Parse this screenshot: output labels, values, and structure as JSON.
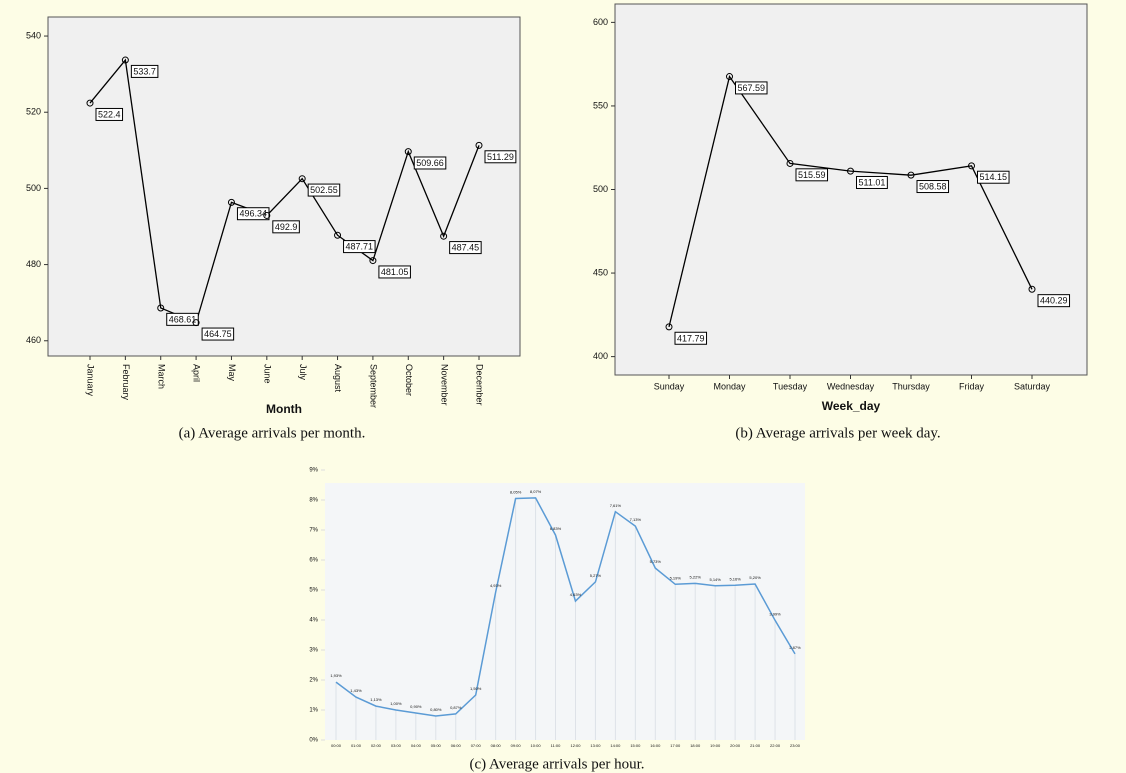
{
  "chart_data": [
    {
      "type": "line",
      "caption": "(a) Average arrivals per month.",
      "xlabel": "Month",
      "categories": [
        "January",
        "February",
        "March",
        "April",
        "May",
        "June",
        "July",
        "August",
        "September",
        "October",
        "November",
        "December"
      ],
      "values": [
        522.4,
        533.7,
        468.61,
        464.75,
        496.34,
        492.9,
        502.55,
        487.71,
        481.05,
        509.66,
        487.45,
        511.29
      ],
      "color": "#000000",
      "ylim": [
        456,
        545
      ],
      "yticks": [
        460,
        480,
        500,
        520,
        540
      ]
    },
    {
      "type": "line",
      "caption": "(b) Average arrivals per week day.",
      "xlabel": "Week_day",
      "categories": [
        "Sunday",
        "Monday",
        "Tuesday",
        "Wednesday",
        "Thursday",
        "Friday",
        "Saturday"
      ],
      "values": [
        417.79,
        567.59,
        515.59,
        511.01,
        508.58,
        514.15,
        440.29
      ],
      "color": "#000000",
      "ylim": [
        389,
        611
      ],
      "yticks": [
        400,
        450,
        500,
        550,
        600
      ]
    },
    {
      "type": "line",
      "caption": "(c) Average arrivals per hour.",
      "categories": [
        "00:00",
        "01:00",
        "02:00",
        "03:00",
        "04:00",
        "05:00",
        "06:00",
        "07:00",
        "08:00",
        "09:00",
        "10:00",
        "11:00",
        "12:00",
        "13:00",
        "14:00",
        "15:00",
        "16:00",
        "17:00",
        "18:00",
        "19:00",
        "20:00",
        "21:00",
        "22:00",
        "23:00"
      ],
      "values": [
        1.93,
        1.43,
        1.13,
        1.0,
        0.9,
        0.8,
        0.87,
        1.5,
        4.93,
        8.05,
        8.07,
        6.83,
        4.63,
        5.27,
        7.61,
        7.13,
        5.73,
        5.19,
        5.22,
        5.14,
        5.16,
        5.2,
        3.99,
        2.87
      ],
      "value_labels": [
        "1,93%",
        "1,43%",
        "1,13%",
        "1,00%",
        "0,90%",
        "0,80%",
        "0,87%",
        "1,50%",
        "4,93%",
        "8,05%",
        "8,07%",
        "6,83%",
        "4,63%",
        "5,27%",
        "7,61%",
        "7,13%",
        "5,73%",
        "5,19%",
        "5,22%",
        "5,14%",
        "5,16%",
        "5,20%",
        "3,99%",
        "2,87%"
      ],
      "color": "#5b9bd5",
      "ylim": [
        0,
        9
      ],
      "yticks": [
        {
          "value": 0,
          "label": "0%"
        },
        {
          "value": 1,
          "label": "1%"
        },
        {
          "value": 2,
          "label": "2%"
        },
        {
          "value": 3,
          "label": "3%"
        },
        {
          "value": 4,
          "label": "4%"
        },
        {
          "value": 5,
          "label": "5%"
        },
        {
          "value": 6,
          "label": "6%"
        },
        {
          "value": 7,
          "label": "7%"
        },
        {
          "value": 8,
          "label": "8%"
        },
        {
          "value": 9,
          "label": "9%"
        }
      ]
    }
  ]
}
